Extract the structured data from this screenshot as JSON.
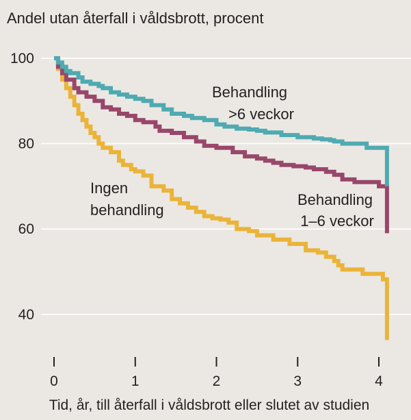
{
  "chart_data": {
    "type": "line",
    "title": "Andel utan återfall i våldsbrott, procent",
    "xlabel": "Tid, år,  till återfall i våldsbrott eller slutet av studien",
    "ylabel": "",
    "xlim": [
      0,
      4.1
    ],
    "ylim": [
      32,
      100
    ],
    "x_ticks": [
      0,
      1,
      2,
      3,
      4
    ],
    "y_ticks": [
      40,
      60,
      80,
      100
    ],
    "grid": "horizontal",
    "series": [
      {
        "name": "Behandling >6 veckor",
        "label_lines": [
          "Behandling",
          ">6 veckor"
        ],
        "color": "#4faab1",
        "x": [
          0,
          0.05,
          0.1,
          0.15,
          0.2,
          0.3,
          0.35,
          0.45,
          0.55,
          0.6,
          0.7,
          0.8,
          0.9,
          1.0,
          1.1,
          1.2,
          1.35,
          1.45,
          1.6,
          1.7,
          1.85,
          2.0,
          2.1,
          2.25,
          2.4,
          2.5,
          2.6,
          2.8,
          3.0,
          3.2,
          3.3,
          3.4,
          3.45,
          3.55,
          3.75,
          3.85,
          4.05,
          4.1
        ],
        "y": [
          100,
          99,
          98,
          97,
          96.5,
          95.5,
          94.5,
          94,
          93.5,
          93,
          92,
          91.5,
          91,
          90.5,
          90,
          89,
          88,
          87,
          86.5,
          86,
          85.5,
          84.5,
          84,
          83.5,
          83.3,
          83,
          82.6,
          82,
          81.5,
          81.2,
          81,
          80.8,
          80.5,
          80,
          80,
          79,
          79,
          70
        ]
      },
      {
        "name": "Behandling 1–6 veckor",
        "label_lines": [
          "Behandling",
          "1–6 veckor"
        ],
        "color": "#98476a",
        "x": [
          0,
          0.05,
          0.1,
          0.15,
          0.25,
          0.3,
          0.4,
          0.5,
          0.6,
          0.7,
          0.8,
          0.9,
          1.0,
          1.1,
          1.25,
          1.3,
          1.45,
          1.6,
          1.75,
          1.85,
          2.0,
          2.2,
          2.35,
          2.5,
          2.6,
          2.7,
          2.8,
          2.95,
          3.1,
          3.2,
          3.35,
          3.45,
          3.55,
          3.7,
          3.8,
          4.0,
          4.05,
          4.1
        ],
        "y": [
          100,
          98,
          96.5,
          95,
          93,
          92,
          91,
          90,
          88.5,
          88,
          87,
          86.5,
          85.5,
          85,
          84,
          83,
          82.5,
          81.5,
          80.5,
          79.5,
          79,
          78,
          77,
          76.5,
          76,
          75.5,
          75,
          74.7,
          74.4,
          74,
          73.4,
          72.7,
          71.6,
          71,
          71,
          70,
          70,
          59
        ]
      },
      {
        "name": "Ingen behandling",
        "label_lines": [
          "Ingen",
          "behandling"
        ],
        "color": "#eab43a",
        "x": [
          0,
          0.05,
          0.1,
          0.15,
          0.2,
          0.25,
          0.3,
          0.35,
          0.4,
          0.45,
          0.5,
          0.55,
          0.6,
          0.7,
          0.8,
          0.85,
          0.95,
          1.0,
          1.1,
          1.2,
          1.35,
          1.45,
          1.55,
          1.65,
          1.75,
          1.85,
          1.95,
          2.05,
          2.15,
          2.25,
          2.4,
          2.5,
          2.7,
          2.9,
          3.1,
          3.25,
          3.35,
          3.45,
          3.5,
          3.55,
          3.8,
          4.05,
          4.1
        ],
        "y": [
          100,
          97.5,
          95,
          93,
          91,
          89,
          87,
          85.5,
          84,
          82.5,
          81.5,
          80,
          79,
          78,
          76,
          75,
          74,
          73.5,
          72.5,
          70,
          69,
          67,
          66,
          65,
          64,
          63,
          62.5,
          62.2,
          61.5,
          60,
          59.5,
          58.5,
          57.5,
          56.5,
          55,
          54.5,
          53.5,
          52.5,
          51.5,
          50.5,
          49.5,
          48.2,
          34
        ]
      }
    ]
  }
}
